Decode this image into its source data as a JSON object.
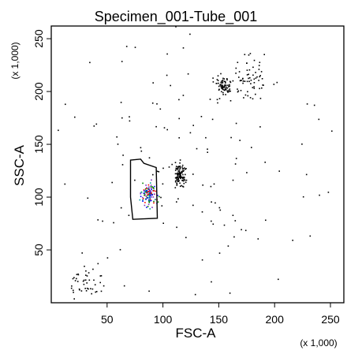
{
  "chart_data": {
    "type": "scatter",
    "title": "Specimen_001-Tube_001",
    "xlabel": "FSC-A",
    "ylabel": "SSC-A",
    "x_multiplier_label": "(x 1,000)",
    "y_multiplier_label": "(x 1,000)",
    "xlim": [
      0,
      262
    ],
    "ylim": [
      0,
      262
    ],
    "x_ticks": [
      50,
      100,
      150,
      200,
      250
    ],
    "y_ticks": [
      50,
      100,
      150,
      200,
      250
    ],
    "x_tick_labels": [
      "50",
      "100",
      "150",
      "200",
      "250"
    ],
    "y_tick_labels": [
      "50",
      "100",
      "150",
      "200",
      "250"
    ],
    "grid": false,
    "point_color": "#000000",
    "gate_polygon": [
      [
        71,
        135
      ],
      [
        80,
        136
      ],
      [
        83,
        132
      ],
      [
        94,
        128
      ],
      [
        95,
        80
      ],
      [
        73,
        79
      ],
      [
        71,
        100
      ]
    ],
    "clusters": [
      {
        "name": "",
        "center": [
          87,
          102
        ],
        "spread": [
          3.5,
          6
        ],
        "count": 120,
        "colors": [
          "#008000",
          "#0000ff",
          "#ff0000",
          "#7b2fbe",
          "#00a0a0"
        ]
      },
      {
        "name": "",
        "center": [
          115,
          121
        ],
        "spread": [
          2.5,
          5.5
        ],
        "count": 110,
        "colors": [
          "#000000"
        ]
      },
      {
        "name": "",
        "center": [
          154,
          205
        ],
        "spread": [
          3,
          4
        ],
        "count": 70,
        "colors": [
          "#000000"
        ]
      },
      {
        "name": "",
        "center": [
          175,
          215
        ],
        "spread": [
          7,
          10
        ],
        "count": 60,
        "colors": [
          "#000000"
        ]
      },
      {
        "name": "",
        "center": [
          30,
          18
        ],
        "spread": [
          8,
          9
        ],
        "count": 45,
        "colors": [
          "#000000"
        ]
      },
      {
        "name": "",
        "center": [
          130,
          130
        ],
        "spread": [
          70,
          70
        ],
        "count": 150,
        "colors": [
          "#000000"
        ]
      }
    ]
  }
}
